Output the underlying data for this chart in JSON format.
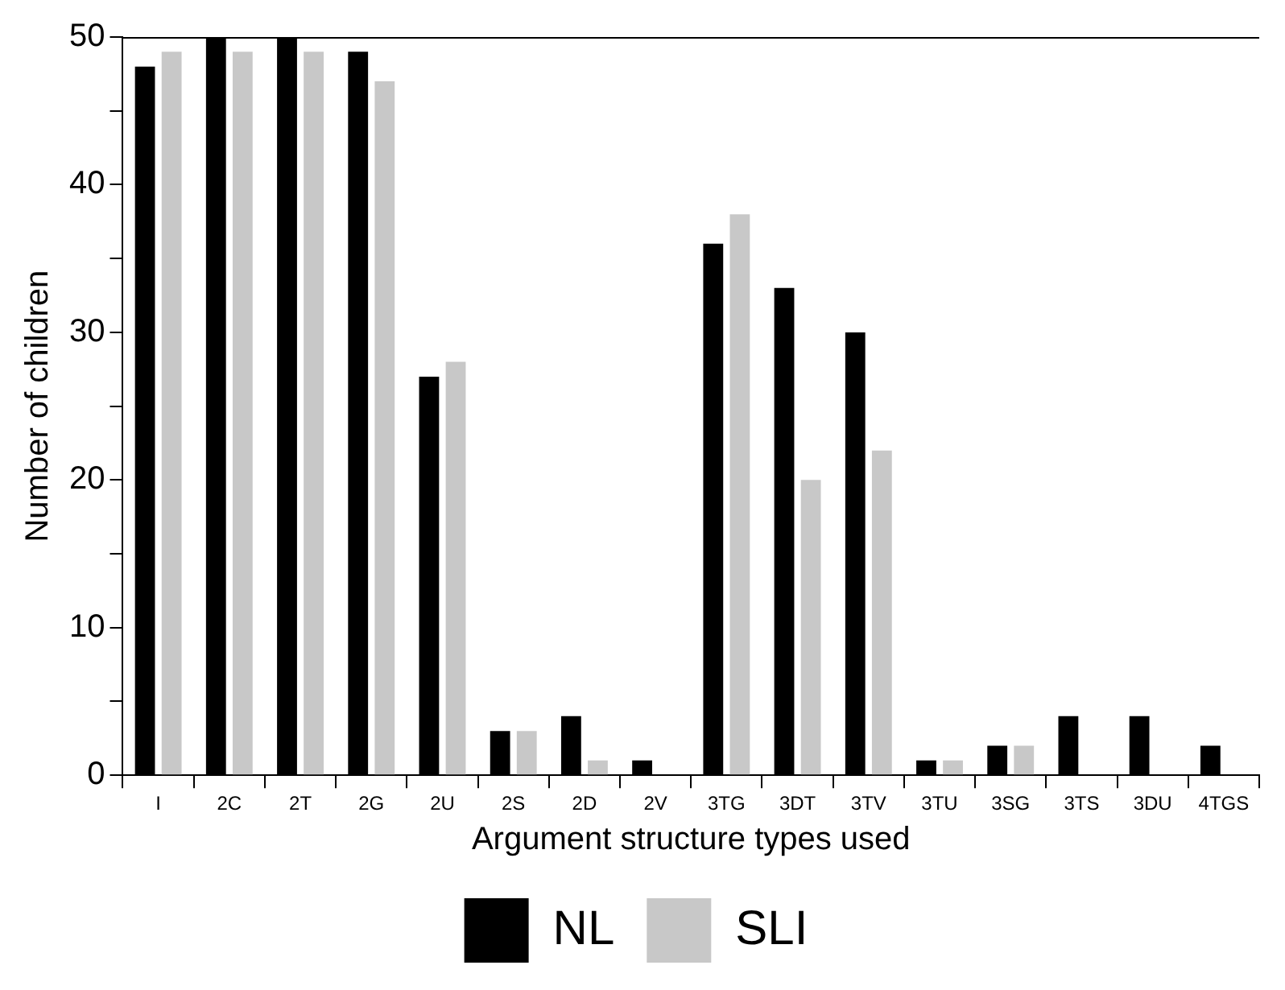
{
  "chart_data": {
    "type": "bar",
    "xlabel": "Argument structure types used",
    "ylabel": "Number of children",
    "categories": [
      "I",
      "2C",
      "2T",
      "2G",
      "2U",
      "2S",
      "2D",
      "2V",
      "3TG",
      "3DT",
      "3TV",
      "3TU",
      "3SG",
      "3TS",
      "3DU",
      "4TGS"
    ],
    "series": [
      {
        "name": "NL",
        "color": "#000000",
        "values": [
          48,
          50,
          50,
          49,
          27,
          3,
          4,
          1,
          36,
          33,
          30,
          1,
          2,
          4,
          4,
          2
        ]
      },
      {
        "name": "SLI",
        "color": "#c8c8c8",
        "values": [
          49,
          49,
          49,
          47,
          28,
          3,
          1,
          0,
          38,
          20,
          22,
          1,
          2,
          0,
          0,
          0
        ]
      }
    ],
    "ylim": [
      0,
      50
    ],
    "yticks": [
      0,
      {
        "value": 5,
        "label": null
      },
      10,
      {
        "value": 15,
        "label": null
      },
      20,
      {
        "value": 25,
        "label": null
      },
      30,
      {
        "value": 35,
        "label": null
      },
      40,
      {
        "value": 45,
        "label": null
      },
      50
    ],
    "grid": false,
    "legend": "bottom"
  }
}
